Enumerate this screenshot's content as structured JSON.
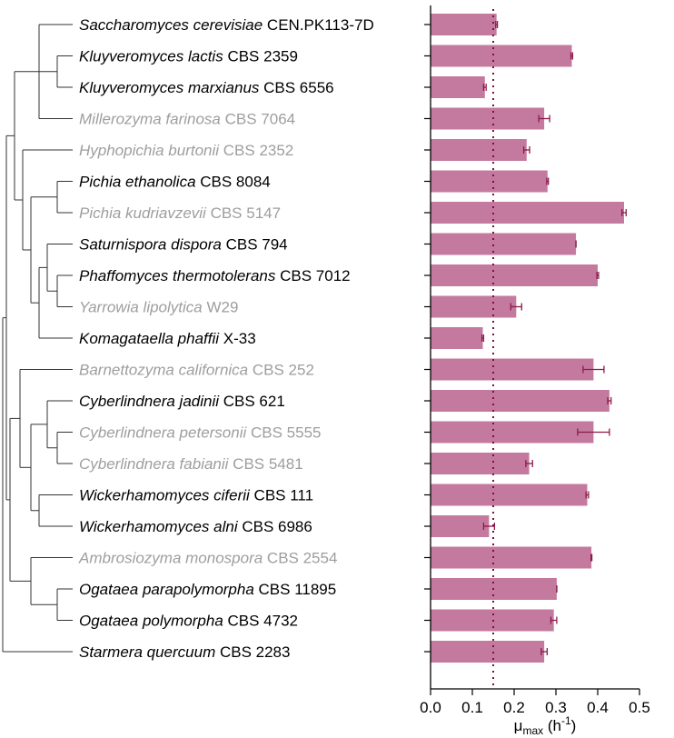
{
  "chart_data": {
    "type": "bar",
    "orientation": "horizontal",
    "xlabel": {
      "symbol": "μ",
      "sub": "max",
      "unit_open": " (h",
      "sup": "-1",
      "unit_close": ")"
    },
    "xlim": [
      0,
      0.5
    ],
    "x_ticks": [
      "0.0",
      "0.1",
      "0.2",
      "0.3",
      "0.4",
      "0.5"
    ],
    "reference_line": {
      "value": 0.15,
      "style": "dotted"
    },
    "colors": {
      "bar": "#c47a9e",
      "error": "#8b1a4a",
      "reference": "#7a1040",
      "label_black": "#000000",
      "label_gray": "#9e9e9e",
      "tree": "#333333"
    },
    "series": [
      {
        "italic": "Saccharomyces cerevisiae",
        "strain": "CEN.PK113-7D",
        "value": 0.158,
        "error": 0.002,
        "color": "black"
      },
      {
        "italic": "Kluyveromyces lactis",
        "strain": "CBS 2359",
        "value": 0.338,
        "error": 0.002,
        "color": "black"
      },
      {
        "italic": "Kluyveromyces marxianus",
        "strain": "CBS 6556",
        "value": 0.13,
        "error": 0.003,
        "color": "black"
      },
      {
        "italic": "Millerozyma farinosa",
        "strain": "CBS 7064",
        "value": 0.272,
        "error": 0.013,
        "color": "gray"
      },
      {
        "italic": "Hyphopichia burtonii",
        "strain": "CBS 2352",
        "value": 0.23,
        "error": 0.007,
        "color": "gray"
      },
      {
        "italic": "Pichia ethanolica",
        "strain": "CBS 8084",
        "value": 0.28,
        "error": 0.002,
        "color": "black"
      },
      {
        "italic": "Pichia kudriavzevii",
        "strain": "CBS 5147",
        "value": 0.463,
        "error": 0.005,
        "color": "gray"
      },
      {
        "italic": "Saturnispora dispora",
        "strain": "CBS 794",
        "value": 0.348,
        "error": 0.0,
        "color": "black"
      },
      {
        "italic": "Phaffomyces thermotolerans",
        "strain": "CBS 7012",
        "value": 0.4,
        "error": 0.002,
        "color": "black"
      },
      {
        "italic": "Yarrowia lipolytica",
        "strain": "W29",
        "value": 0.205,
        "error": 0.013,
        "color": "gray"
      },
      {
        "italic": "Komagataella phaffii",
        "strain": "X-33",
        "value": 0.125,
        "error": 0.002,
        "color": "black"
      },
      {
        "italic": "Barnettozyma californica",
        "strain": "CBS 252",
        "value": 0.39,
        "error": 0.025,
        "color": "gray"
      },
      {
        "italic": "Cyberlindnera jadinii",
        "strain": "CBS 621",
        "value": 0.428,
        "error": 0.004,
        "color": "black"
      },
      {
        "italic": "Cyberlindnera petersonii",
        "strain": "CBS 5555",
        "value": 0.39,
        "error": 0.038,
        "color": "gray"
      },
      {
        "italic": "Cyberlindnera fabianii",
        "strain": "CBS 5481",
        "value": 0.236,
        "error": 0.008,
        "color": "gray"
      },
      {
        "italic": "Wickerhamomyces ciferii",
        "strain": "CBS 111",
        "value": 0.375,
        "error": 0.003,
        "color": "black"
      },
      {
        "italic": "Wickerhamomyces alni",
        "strain": "CBS 6986",
        "value": 0.14,
        "error": 0.013,
        "color": "black"
      },
      {
        "italic": "Ambrosiozyma monospora",
        "strain": "CBS 2554",
        "value": 0.385,
        "error": 0.001,
        "color": "gray"
      },
      {
        "italic": "Ogataea parapolymorpha",
        "strain": "CBS 11895",
        "value": 0.302,
        "error": 0.0,
        "color": "black"
      },
      {
        "italic": "Ogataea polymorpha",
        "strain": "CBS 4732",
        "value": 0.295,
        "error": 0.007,
        "color": "black"
      },
      {
        "italic": "Starmera quercuum",
        "strain": "CBS 2283",
        "value": 0.272,
        "error": 0.007,
        "color": "black"
      }
    ]
  }
}
